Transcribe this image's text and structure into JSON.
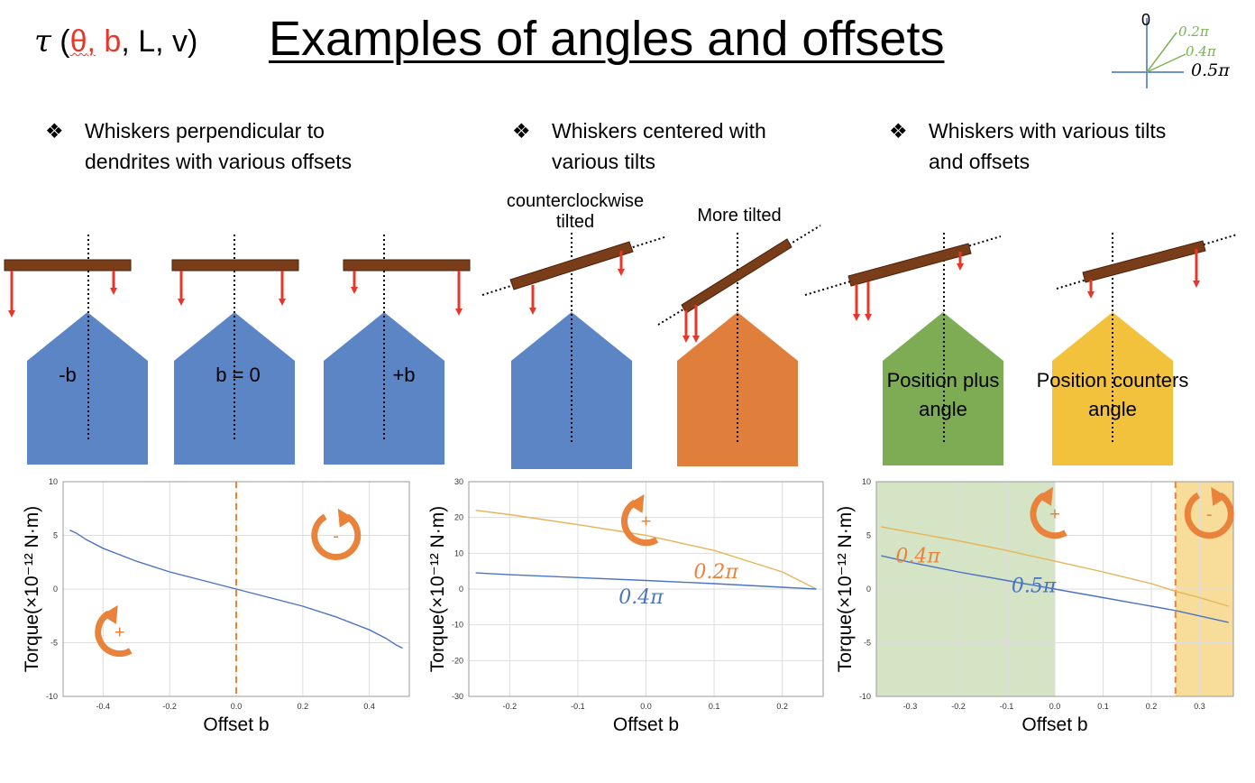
{
  "header": {
    "formula": {
      "tau": "τ",
      "open": " (",
      "theta": "θ",
      "comma1": ",",
      "b": " b",
      "rest": ", L, v)"
    },
    "title": "Examples of angles and offsets"
  },
  "angle_legend": {
    "zero": "0",
    "a02": "0.2π",
    "a04": "0.4π",
    "a05": "0.5π",
    "colors": {
      "a02": "#7ab356",
      "a04": "#7ab356",
      "axes": "#3f6fc0"
    }
  },
  "columns": [
    {
      "bullet": "❖",
      "text": "Whiskers perpendicular to\ndendrites with various offsets"
    },
    {
      "bullet": "❖",
      "text": "Whiskers centered with\nvarious tilts"
    },
    {
      "bullet": "❖",
      "text": "Whiskers with various tilts\nand offsets"
    }
  ],
  "labels": {
    "ccw": "counterclockwise\ntilted",
    "more_tilted": "More tilted"
  },
  "houses": [
    {
      "text": "-b",
      "color": "#5b85c5"
    },
    {
      "text": "b = 0",
      "color": "#5b85c5"
    },
    {
      "text": "+b",
      "color": "#5b85c5"
    },
    {
      "text": "",
      "color": "#5b85c5"
    },
    {
      "text": "",
      "color": "#e07f3c"
    },
    {
      "text": "Position plus\nangle",
      "color": "#7dac55"
    },
    {
      "text": "Position counters\nangle",
      "color": "#f2c23c"
    }
  ],
  "colors": {
    "whisker": "#7a3d1a",
    "arrow": "#e8372a",
    "blue": "#4a74c2",
    "orange": "#e9823a",
    "tan": "#e4b559",
    "shade_green": "#d6e4c6",
    "shade_yellow": "#f8dc9a"
  },
  "chart_data": [
    {
      "type": "line",
      "xlabel": "Offset b",
      "ylabel": "Torque(×10⁻¹² N·m)",
      "xlim": [
        -0.52,
        0.52
      ],
      "ylim": [
        -10,
        10
      ],
      "xticks": [
        "-0.4",
        "-0.2",
        "0.0",
        "0.2",
        "0.4"
      ],
      "yticks": [
        "10",
        "5",
        "0",
        "-5",
        "-10"
      ],
      "vline": 0.0,
      "series": [
        {
          "x": [
            -0.5,
            -0.48,
            -0.45,
            -0.4,
            -0.3,
            -0.2,
            -0.1,
            0.0,
            0.1,
            0.2,
            0.3,
            0.4,
            0.45,
            0.48,
            0.5
          ],
          "y": [
            5.5,
            5.2,
            4.6,
            3.8,
            2.6,
            1.6,
            0.8,
            0.0,
            -0.8,
            -1.6,
            -2.6,
            -3.8,
            -4.6,
            -5.2,
            -5.5
          ]
        }
      ],
      "annotations": [
        {
          "text": "-",
          "x": 0.3,
          "y": 5
        },
        {
          "text": "+",
          "x": -0.35,
          "y": -4
        }
      ]
    },
    {
      "type": "line",
      "xlabel": "Offset b",
      "ylabel": "Torque(×10⁻¹² N·m)",
      "xlim": [
        -0.26,
        0.26
      ],
      "ylim": [
        -30,
        30
      ],
      "xticks": [
        "-0.2",
        "-0.1",
        "0.0",
        "0.1",
        "0.2"
      ],
      "yticks": [
        "30",
        "20",
        "10",
        "0",
        "-10",
        "-20",
        "-30"
      ],
      "series": [
        {
          "name": "0.2π",
          "x": [
            -0.25,
            -0.2,
            -0.1,
            0.0,
            0.1,
            0.2,
            0.25
          ],
          "y": [
            22.0,
            20.8,
            18.0,
            15.0,
            10.8,
            4.8,
            0.0
          ]
        },
        {
          "name": "0.4π",
          "x": [
            -0.25,
            -0.2,
            -0.1,
            0.0,
            0.1,
            0.2,
            0.25
          ],
          "y": [
            4.5,
            4.0,
            3.2,
            2.4,
            1.5,
            0.5,
            0.0
          ]
        }
      ],
      "annotations": [
        {
          "text": "+",
          "x": 0.0,
          "y": 19
        }
      ]
    },
    {
      "type": "line",
      "xlabel": "Offset b",
      "ylabel": "Torque(×10⁻¹² N·m)",
      "xlim": [
        -0.37,
        0.37
      ],
      "ylim": [
        -10,
        10
      ],
      "xticks": [
        "-0.3",
        "-0.2",
        "-0.1",
        "0.0",
        "0.1",
        "0.2",
        "0.3"
      ],
      "yticks": [
        "10",
        "5",
        "0",
        "-5",
        "-10"
      ],
      "vline": 0.25,
      "shade": [
        {
          "from": -0.37,
          "to": 0.0,
          "color": "green"
        },
        {
          "from": 0.25,
          "to": 0.37,
          "color": "yellow"
        }
      ],
      "series": [
        {
          "name": "0.4π",
          "x": [
            -0.36,
            -0.3,
            -0.2,
            -0.1,
            0.0,
            0.1,
            0.2,
            0.25,
            0.3,
            0.36
          ],
          "y": [
            5.8,
            5.3,
            4.5,
            3.6,
            2.6,
            1.6,
            0.5,
            -0.2,
            -0.8,
            -1.6
          ]
        },
        {
          "name": "0.5π",
          "x": [
            -0.36,
            -0.3,
            -0.2,
            -0.1,
            0.0,
            0.1,
            0.2,
            0.25,
            0.3,
            0.36
          ],
          "y": [
            3.1,
            2.5,
            1.6,
            0.8,
            0.0,
            -0.8,
            -1.6,
            -2.0,
            -2.5,
            -3.1
          ]
        }
      ],
      "annotations": [
        {
          "text": "+",
          "x": 0.0,
          "y": 7
        },
        {
          "text": "-",
          "x": 0.32,
          "y": 7
        }
      ]
    }
  ]
}
